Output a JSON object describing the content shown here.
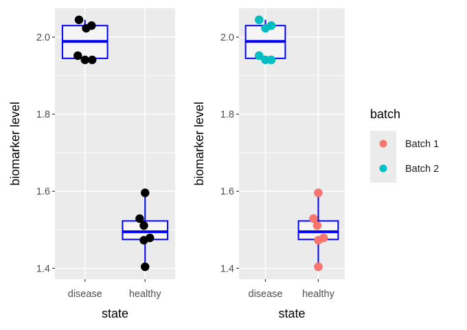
{
  "chart_data": [
    {
      "type": "box",
      "panel": "left",
      "xlabel": "state",
      "ylabel": "biomarker level",
      "categories": [
        "disease",
        "healthy"
      ],
      "yticks": [
        "1.4",
        "1.6",
        "1.8",
        "2.0"
      ],
      "ytick_values": [
        1.4,
        1.6,
        1.8,
        2.0
      ],
      "ylim": [
        1.372,
        2.075
      ],
      "grid": true,
      "box_color": "#0000ff",
      "box_fill": "#f5f5f5",
      "boxes": [
        {
          "category": "disease",
          "q1": 1.945,
          "median": 1.989,
          "q3": 2.03,
          "min": 1.941,
          "max": 2.045
        },
        {
          "category": "healthy",
          "q1": 1.475,
          "median": 1.495,
          "q3": 1.523,
          "min": 1.404,
          "max": 1.596
        }
      ],
      "points": [
        {
          "category": "disease",
          "jitter": -0.1,
          "y": 2.045,
          "batch": "Batch 2"
        },
        {
          "category": "disease",
          "jitter": 0.11,
          "y": 2.03,
          "batch": "Batch 2"
        },
        {
          "category": "disease",
          "jitter": 0.02,
          "y": 2.023,
          "batch": "Batch 2"
        },
        {
          "category": "disease",
          "jitter": -0.12,
          "y": 1.952,
          "batch": "Batch 2"
        },
        {
          "category": "disease",
          "jitter": 0.0,
          "y": 1.941,
          "batch": "Batch 2"
        },
        {
          "category": "disease",
          "jitter": 0.12,
          "y": 1.941,
          "batch": "Batch 2"
        },
        {
          "category": "healthy",
          "jitter": 0.0,
          "y": 1.596,
          "batch": "Batch 1"
        },
        {
          "category": "healthy",
          "jitter": -0.09,
          "y": 1.529,
          "batch": "Batch 1"
        },
        {
          "category": "healthy",
          "jitter": -0.02,
          "y": 1.511,
          "batch": "Batch 1"
        },
        {
          "category": "healthy",
          "jitter": 0.08,
          "y": 1.479,
          "batch": "Batch 1"
        },
        {
          "category": "healthy",
          "jitter": -0.02,
          "y": 1.473,
          "batch": "Batch 1"
        },
        {
          "category": "healthy",
          "jitter": 0.0,
          "y": 1.404,
          "batch": "Batch 1"
        }
      ],
      "point_color": "#000000"
    },
    {
      "type": "box",
      "panel": "right",
      "xlabel": "state",
      "ylabel": "biomarker level",
      "categories": [
        "disease",
        "healthy"
      ],
      "yticks": [
        "1.4",
        "1.6",
        "1.8",
        "2.0"
      ],
      "ytick_values": [
        1.4,
        1.6,
        1.8,
        2.0
      ],
      "ylim": [
        1.372,
        2.075
      ],
      "grid": true,
      "box_color": "#0000ff",
      "box_fill": "#f5f5f5",
      "boxes": [
        {
          "category": "disease",
          "q1": 1.945,
          "median": 1.989,
          "q3": 2.03,
          "min": 1.941,
          "max": 2.045
        },
        {
          "category": "healthy",
          "q1": 1.475,
          "median": 1.495,
          "q3": 1.523,
          "min": 1.404,
          "max": 1.596
        }
      ],
      "points": [
        {
          "category": "disease",
          "jitter": -0.12,
          "y": 2.045,
          "batch": "Batch 2"
        },
        {
          "category": "disease",
          "jitter": 0.11,
          "y": 2.03,
          "batch": "Batch 2"
        },
        {
          "category": "disease",
          "jitter": 0.0,
          "y": 2.023,
          "batch": "Batch 2"
        },
        {
          "category": "disease",
          "jitter": -0.12,
          "y": 1.952,
          "batch": "Batch 2"
        },
        {
          "category": "disease",
          "jitter": 0.0,
          "y": 1.941,
          "batch": "Batch 2"
        },
        {
          "category": "disease",
          "jitter": 0.11,
          "y": 1.941,
          "batch": "Batch 2"
        },
        {
          "category": "healthy",
          "jitter": 0.0,
          "y": 1.596,
          "batch": "Batch 1"
        },
        {
          "category": "healthy",
          "jitter": -0.09,
          "y": 1.529,
          "batch": "Batch 1"
        },
        {
          "category": "healthy",
          "jitter": -0.02,
          "y": 1.511,
          "batch": "Batch 1"
        },
        {
          "category": "healthy",
          "jitter": 0.1,
          "y": 1.479,
          "batch": "Batch 1"
        },
        {
          "category": "healthy",
          "jitter": 0.0,
          "y": 1.473,
          "batch": "Batch 1"
        },
        {
          "category": "healthy",
          "jitter": 0.0,
          "y": 1.404,
          "batch": "Batch 1"
        }
      ],
      "color_by": "batch"
    }
  ],
  "legend": {
    "title": "batch",
    "placement": "right",
    "items": [
      {
        "label": "Batch 1",
        "color": "#f8766d"
      },
      {
        "label": "Batch 2",
        "color": "#00bfc4"
      }
    ]
  }
}
